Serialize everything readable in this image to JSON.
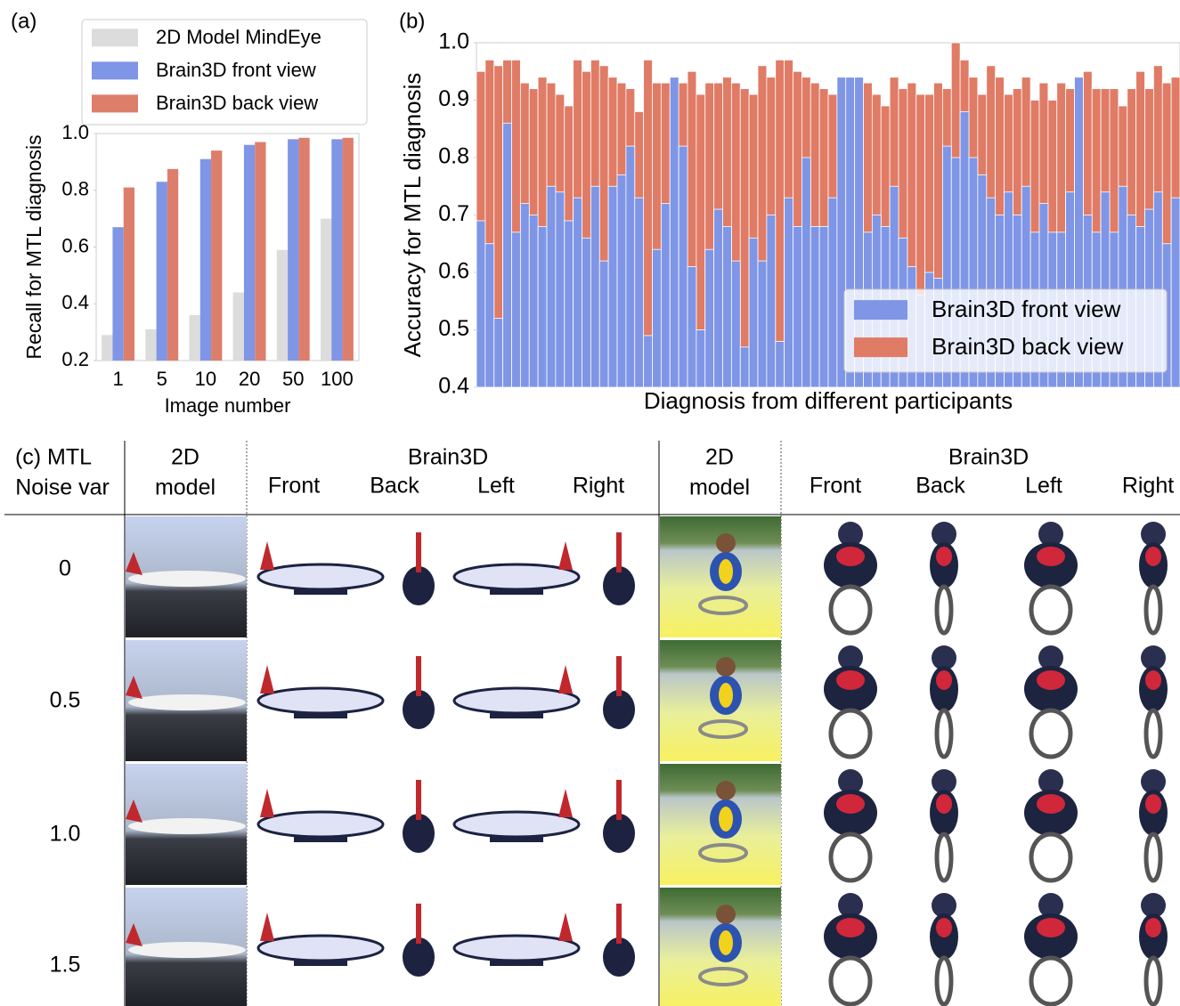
{
  "chart_data": [
    {
      "type": "bar",
      "panel_label": "(a)",
      "barmode": "group",
      "legend": "above",
      "grid": false,
      "x_label": "Image number",
      "y_label": "Recall for MTL diagnosis",
      "categories": [
        "1",
        "5",
        "10",
        "20",
        "50",
        "100"
      ],
      "ylim": [
        0.2,
        1.0
      ],
      "yticks": [
        0.2,
        0.4,
        0.6,
        0.8,
        {
          "value": 1.0,
          "label": "1.0"
        }
      ],
      "series": [
        {
          "name": "2D Model MindEye",
          "color": "#dcdcdc",
          "values": [
            0.29,
            0.31,
            0.36,
            0.44,
            0.59,
            0.7
          ]
        },
        {
          "name": "Brain3D front view",
          "color": "#7f95e6",
          "values": [
            0.67,
            0.83,
            0.91,
            0.96,
            0.98,
            0.98
          ]
        },
        {
          "name": "Brain3D back view",
          "color": "#dd7e6b",
          "values": [
            0.81,
            0.875,
            0.94,
            0.97,
            0.985,
            0.985
          ]
        }
      ]
    },
    {
      "type": "bar",
      "panel_label": "(b)",
      "barmode": "overlay",
      "legend": "lower right",
      "grid": false,
      "x_label": "Diagnosis from different participants",
      "y_label": "Accuracy for MTL diagnosis",
      "categories": [
        null,
        null,
        null,
        null,
        null,
        null,
        null,
        null,
        null,
        null,
        null,
        null,
        null,
        null,
        null,
        null,
        null,
        null,
        null,
        null,
        null,
        null,
        null,
        null,
        null,
        null,
        null,
        null,
        null,
        null,
        null,
        null,
        null,
        null,
        null,
        null,
        null,
        null,
        null,
        null,
        null,
        null,
        null,
        null,
        null,
        null,
        null,
        null,
        null,
        null,
        null,
        null,
        null,
        null,
        null,
        null,
        null,
        null,
        null,
        null,
        null,
        null,
        null,
        null,
        null,
        null,
        null,
        null,
        null,
        null,
        null,
        null,
        null,
        null,
        null,
        null,
        null,
        null,
        null,
        null
      ],
      "ylim": [
        0.4,
        1.0
      ],
      "yticks": [
        0.4,
        0.5,
        0.6,
        0.7,
        0.8,
        0.9,
        {
          "value": 1.0,
          "label": "1.0"
        }
      ],
      "series": [
        {
          "name": "Brain3D front view",
          "color": "#7f95e6",
          "values": [
            0.69,
            0.65,
            0.52,
            0.86,
            0.67,
            0.72,
            0.7,
            0.68,
            0.75,
            0.74,
            0.69,
            0.73,
            0.66,
            0.75,
            0.62,
            0.75,
            0.77,
            0.82,
            0.73,
            0.49,
            0.64,
            0.72,
            0.94,
            0.82,
            0.61,
            0.5,
            0.64,
            0.71,
            0.68,
            0.62,
            0.47,
            0.66,
            0.62,
            0.7,
            0.48,
            0.73,
            0.68,
            0.8,
            0.68,
            0.68,
            0.73,
            0.94,
            0.94,
            0.94,
            0.67,
            0.7,
            0.68,
            0.75,
            0.66,
            0.61,
            0.56,
            0.6,
            0.59,
            0.82,
            0.8,
            0.88,
            0.8,
            0.77,
            0.73,
            0.7,
            0.74,
            0.7,
            0.75,
            0.67,
            0.72,
            0.67,
            0.67,
            0.74,
            0.94,
            0.7,
            0.67,
            0.74,
            0.67,
            0.75,
            0.7,
            0.68,
            0.71,
            0.74,
            0.65,
            0.73
          ]
        },
        {
          "name": "Brain3D back view",
          "color": "#e07b66",
          "values": [
            0.95,
            0.97,
            0.96,
            0.97,
            0.97,
            0.93,
            0.92,
            0.94,
            0.93,
            0.91,
            0.89,
            0.97,
            0.95,
            0.97,
            0.96,
            0.94,
            0.93,
            0.92,
            0.88,
            0.97,
            0.93,
            0.93,
            0.91,
            0.93,
            0.95,
            0.91,
            0.93,
            0.93,
            0.94,
            0.93,
            0.92,
            0.91,
            0.96,
            0.94,
            0.97,
            0.97,
            0.95,
            0.94,
            0.93,
            0.92,
            0.91,
            0.93,
            0.92,
            0.9,
            0.93,
            0.91,
            0.89,
            0.94,
            0.92,
            0.93,
            0.91,
            0.91,
            0.93,
            0.92,
            1.0,
            0.97,
            0.94,
            0.91,
            0.96,
            0.94,
            0.91,
            0.92,
            0.94,
            0.9,
            0.93,
            0.9,
            0.93,
            0.92,
            0.91,
            0.95,
            0.92,
            0.92,
            0.92,
            0.89,
            0.92,
            0.95,
            0.92,
            0.96,
            0.93,
            0.94
          ]
        }
      ]
    }
  ],
  "panel_c": {
    "row_header": [
      "(c) MTL",
      "Noise var"
    ],
    "groups": [
      {
        "model": [
          "2D",
          "model"
        ],
        "method": "Brain3D",
        "views": [
          "Front",
          "Back",
          "Left",
          "Right"
        ]
      },
      {
        "model": [
          "2D",
          "model"
        ],
        "method": "Brain3D",
        "views": [
          "Front",
          "Back",
          "Left",
          "Right"
        ]
      }
    ],
    "rows": [
      "0",
      "0.5",
      "1.0",
      "1.5"
    ]
  }
}
